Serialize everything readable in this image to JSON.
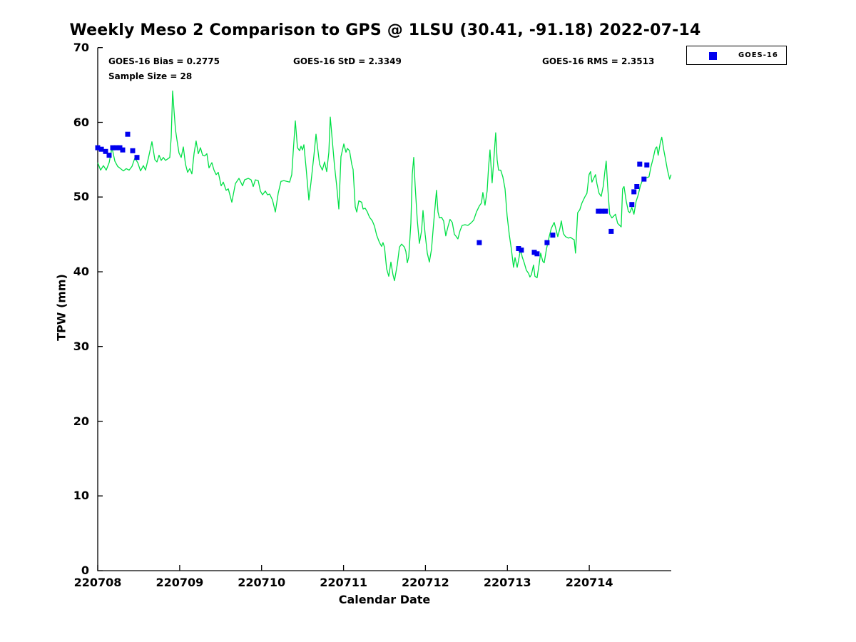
{
  "figure": {
    "title": "Weekly Meso 2 Comparison to GPS @ 1LSU (30.41, -91.18) 2022-07-14"
  },
  "chart_data": {
    "type": "line",
    "title": "Weekly Meso 2 Comparison to GPS @ 1LSU (30.41, -91.18) 2022-07-14",
    "xlabel": "Calendar Date",
    "ylabel": "TPW (mm)",
    "annotations": [
      "GOES-16 Bias = 0.2775",
      "GOES-16 StD = 2.3349",
      "GOES-16 RMS = 2.3513",
      "Sample Size = 28"
    ],
    "legend": {
      "entries": [
        "GOES-16"
      ],
      "position": "top-right-outside",
      "marker": "square"
    },
    "colors": {
      "gps_line": "#00e046",
      "goes16": "#0000ee",
      "text": "#000000"
    },
    "x_axis": {
      "label": "Calendar Date",
      "tick_labels": [
        "220708",
        "220709",
        "220710",
        "220711",
        "220712",
        "220713",
        "220714"
      ],
      "tick_t": [
        0,
        1,
        2,
        3,
        4,
        5,
        6
      ],
      "t_unit": "days since 220708",
      "range_days": [
        0,
        7
      ]
    },
    "y_axis": {
      "label": "TPW (mm)",
      "tick_labels": [
        "0",
        "10",
        "20",
        "30",
        "40",
        "50",
        "60",
        "70"
      ],
      "tick_values": [
        0,
        10,
        20,
        30,
        40,
        50,
        60,
        70
      ],
      "range": [
        0,
        70
      ],
      "grid": false
    },
    "series": [
      {
        "name": "GPS TPW",
        "type": "line",
        "color_key": "gps_line",
        "t": [
          0.0,
          0.035,
          0.07,
          0.104,
          0.139,
          0.174,
          0.209,
          0.244,
          0.279,
          0.313,
          0.348,
          0.383,
          0.418,
          0.453,
          0.488,
          0.522,
          0.557,
          0.583,
          0.618,
          0.662,
          0.697,
          0.723,
          0.749,
          0.775,
          0.801,
          0.827,
          0.853,
          0.879,
          0.897,
          0.914,
          0.932,
          0.949,
          0.966,
          0.992,
          1.019,
          1.045,
          1.071,
          1.097,
          1.123,
          1.149,
          1.175,
          1.201,
          1.228,
          1.254,
          1.28,
          1.306,
          1.332,
          1.358,
          1.393,
          1.419,
          1.445,
          1.471,
          1.506,
          1.532,
          1.567,
          1.593,
          1.637,
          1.68,
          1.724,
          1.767,
          1.793,
          1.837,
          1.872,
          1.898,
          1.924,
          1.959,
          1.985,
          2.011,
          2.046,
          2.072,
          2.098,
          2.133,
          2.168,
          2.203,
          2.237,
          2.272,
          2.307,
          2.342,
          2.368,
          2.386,
          2.412,
          2.438,
          2.464,
          2.481,
          2.499,
          2.516,
          2.542,
          2.577,
          2.603,
          2.638,
          2.664,
          2.69,
          2.708,
          2.742,
          2.769,
          2.795,
          2.821,
          2.838,
          2.856,
          2.873,
          2.89,
          2.917,
          2.943,
          2.969,
          3.004,
          3.03,
          3.047,
          3.073,
          3.1,
          3.117,
          3.143,
          3.161,
          3.187,
          3.221,
          3.239,
          3.265,
          3.291,
          3.317,
          3.352,
          3.378,
          3.404,
          3.439,
          3.465,
          3.482,
          3.5,
          3.526,
          3.552,
          3.578,
          3.604,
          3.622,
          3.657,
          3.683,
          3.709,
          3.744,
          3.761,
          3.779,
          3.796,
          3.822,
          3.839,
          3.857,
          3.874,
          3.9,
          3.926,
          3.953,
          3.97,
          3.996,
          4.022,
          4.048,
          4.074,
          4.1,
          4.135,
          4.153,
          4.17,
          4.196,
          4.222,
          4.248,
          4.274,
          4.3,
          4.327,
          4.353,
          4.37,
          4.396,
          4.422,
          4.448,
          4.483,
          4.518,
          4.553,
          4.588,
          4.622,
          4.657,
          4.683,
          4.701,
          4.727,
          4.753,
          4.77,
          4.788,
          4.814,
          4.831,
          4.857,
          4.875,
          4.892,
          4.918,
          4.944,
          4.971,
          4.997,
          5.023,
          5.049,
          5.075,
          5.093,
          5.119,
          5.136,
          5.162,
          5.18,
          5.206,
          5.232,
          5.258,
          5.275,
          5.293,
          5.319,
          5.336,
          5.362,
          5.388,
          5.406,
          5.432,
          5.449,
          5.476,
          5.51,
          5.536,
          5.571,
          5.597,
          5.615,
          5.641,
          5.658,
          5.684,
          5.71,
          5.745,
          5.771,
          5.797,
          5.815,
          5.832,
          5.858,
          5.884,
          5.91,
          5.945,
          5.971,
          5.997,
          6.015,
          6.032,
          6.058,
          6.075,
          6.093,
          6.119,
          6.145,
          6.171,
          6.189,
          6.206,
          6.223,
          6.249,
          6.276,
          6.302,
          6.319,
          6.345,
          6.371,
          6.389,
          6.406,
          6.424,
          6.45,
          6.476,
          6.493,
          6.519,
          6.545,
          6.571,
          6.597,
          6.623,
          6.65,
          6.676,
          6.702,
          6.728,
          6.754,
          6.78,
          6.806,
          6.823,
          6.841,
          6.867,
          6.884,
          6.91,
          6.928,
          6.954,
          6.98,
          6.997
        ],
        "v": [
          54.6,
          53.6,
          54.2,
          53.6,
          54.6,
          56.6,
          54.8,
          54.1,
          53.8,
          53.5,
          53.8,
          53.6,
          54.1,
          55.2,
          54.6,
          53.5,
          54.2,
          53.6,
          55.2,
          57.4,
          55.0,
          54.7,
          55.6,
          54.9,
          55.3,
          54.9,
          55.1,
          55.3,
          58.0,
          64.2,
          61.5,
          59.0,
          57.7,
          55.9,
          55.3,
          56.7,
          54.4,
          53.3,
          53.8,
          53.1,
          55.8,
          57.5,
          55.8,
          56.6,
          55.6,
          55.5,
          55.8,
          53.9,
          54.6,
          53.6,
          53.0,
          53.3,
          51.5,
          52.0,
          50.9,
          51.1,
          49.3,
          51.8,
          52.5,
          51.5,
          52.3,
          52.5,
          52.3,
          51.4,
          52.3,
          52.2,
          50.8,
          50.3,
          50.8,
          50.3,
          50.4,
          49.6,
          48.0,
          50.5,
          52.1,
          52.2,
          52.1,
          52.0,
          53.0,
          56.0,
          60.2,
          56.6,
          56.2,
          56.8,
          56.3,
          57.0,
          54.0,
          49.6,
          52.0,
          55.5,
          58.4,
          56.0,
          54.4,
          53.6,
          54.7,
          53.4,
          56.0,
          60.7,
          58.5,
          56.3,
          54.2,
          51.5,
          48.4,
          55.4,
          57.1,
          56.0,
          56.5,
          56.2,
          54.4,
          53.7,
          48.7,
          48.0,
          49.5,
          49.3,
          48.4,
          48.5,
          48.0,
          47.3,
          46.8,
          46.1,
          44.9,
          43.9,
          43.4,
          43.9,
          43.3,
          40.4,
          39.4,
          41.3,
          39.6,
          38.8,
          41.0,
          43.3,
          43.7,
          43.3,
          42.7,
          41.2,
          42.0,
          46.5,
          53.0,
          55.3,
          51.5,
          47.0,
          43.8,
          45.5,
          48.2,
          45.0,
          42.5,
          41.3,
          43.0,
          46.5,
          50.9,
          48.0,
          47.2,
          47.3,
          46.8,
          44.8,
          46.0,
          47.0,
          46.6,
          45.0,
          44.8,
          44.4,
          45.5,
          46.2,
          46.3,
          46.2,
          46.5,
          46.9,
          48.0,
          48.8,
          49.2,
          50.6,
          48.9,
          50.8,
          54.0,
          56.3,
          51.9,
          54.5,
          58.6,
          55.0,
          53.6,
          53.6,
          52.7,
          51.1,
          47.5,
          45.0,
          43.0,
          40.6,
          41.9,
          40.6,
          41.5,
          43.1,
          42.0,
          41.2,
          40.2,
          39.8,
          39.3,
          39.6,
          40.9,
          39.4,
          39.2,
          41.0,
          42.5,
          41.4,
          41.2,
          43.0,
          44.7,
          45.8,
          46.6,
          45.5,
          44.7,
          45.8,
          46.8,
          45.1,
          44.7,
          44.5,
          44.6,
          44.4,
          44.3,
          42.5,
          47.9,
          48.3,
          49.2,
          50.0,
          50.5,
          53.0,
          53.4,
          52.0,
          52.6,
          53.0,
          51.8,
          50.5,
          50.1,
          51.5,
          53.3,
          54.8,
          51.5,
          47.7,
          47.2,
          47.5,
          47.7,
          46.5,
          46.2,
          46.0,
          51.1,
          51.4,
          49.5,
          48.1,
          47.9,
          48.6,
          47.7,
          49.4,
          50.3,
          51.5,
          52.3,
          52.5,
          52.6,
          52.7,
          54.1,
          55.2,
          56.5,
          56.7,
          55.6,
          57.3,
          58.0,
          56.2,
          55.2,
          53.6,
          52.4,
          53.0
        ]
      },
      {
        "name": "GOES-16",
        "type": "scatter",
        "marker": "square",
        "color_key": "goes16",
        "sample_size": 28,
        "t": [
          0.0,
          0.044,
          0.096,
          0.139,
          0.183,
          0.226,
          0.27,
          0.305,
          0.366,
          0.427,
          0.479,
          4.657,
          5.136,
          5.171,
          5.328,
          5.362,
          5.484,
          5.554,
          6.11,
          6.154,
          6.197,
          6.267,
          6.519,
          6.545,
          6.58,
          6.615,
          6.667,
          6.702
        ],
        "v": [
          56.6,
          56.4,
          56.1,
          55.6,
          56.6,
          56.6,
          56.6,
          56.3,
          58.4,
          56.2,
          55.3,
          43.9,
          43.1,
          42.9,
          42.6,
          42.4,
          43.9,
          44.9,
          48.1,
          48.1,
          48.1,
          45.4,
          49.0,
          50.7,
          51.4,
          54.4,
          52.4,
          54.3
        ]
      }
    ]
  }
}
